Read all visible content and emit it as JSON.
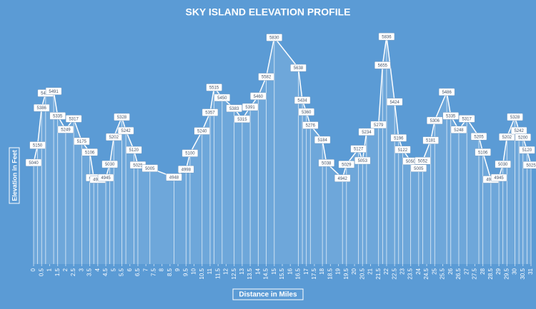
{
  "chart_data": {
    "type": "line",
    "title": "SKY ISLAND ELEVATION PROFILE",
    "xlabel": "Distance in Miles",
    "ylabel": "Elevation in Feet",
    "color": "#ffffff",
    "x": [
      0,
      0.25,
      0.5,
      0.75,
      1.25,
      1.5,
      2,
      2.5,
      3,
      3.5,
      3.75,
      4,
      4.5,
      4.75,
      5,
      5.5,
      5.75,
      6.25,
      6.5,
      7.25,
      8.75,
      9.5,
      9.75,
      10.5,
      11,
      11.25,
      11.75,
      12.5,
      13,
      13.5,
      14,
      14.5,
      15,
      16.5,
      16.75,
      17,
      17.25,
      18,
      18.25,
      19.25,
      19.5,
      20.25,
      20.5,
      20.75,
      21.5,
      21.75,
      22,
      22.5,
      22.75,
      23,
      23.5,
      24,
      24.25,
      24.75,
      25,
      25.75,
      26,
      26.5,
      27,
      27.75,
      28,
      28.5,
      29,
      29.25,
      29.5,
      30,
      30.25,
      30.5,
      30.75,
      31
    ],
    "values": [
      5040,
      5150,
      5386,
      5479,
      5491,
      5335,
      5249,
      5317,
      5175,
      5106,
      4945,
      4934,
      4945,
      5030,
      5202,
      5328,
      5242,
      5120,
      5025,
      5005,
      4948,
      4998,
      5100,
      5240,
      5357,
      5515,
      5450,
      5383,
      5315,
      5391,
      5460,
      5582,
      5830,
      5638,
      5434,
      5360,
      5276,
      5184,
      5038,
      4942,
      5029,
      5127,
      5053,
      5234,
      5279,
      5655,
      5836,
      5424,
      5196,
      5122,
      5050,
      5005,
      5052,
      5181,
      5306,
      5486,
      5335,
      5248,
      5317,
      5205,
      5106,
      4934,
      4945,
      5030,
      5202,
      5328,
      5242,
      5200,
      5120,
      5025
    ],
    "xlim": [
      0,
      31
    ],
    "xticks": [
      0,
      0.5,
      1,
      1.5,
      2,
      2.5,
      3,
      3.5,
      4,
      4.5,
      5,
      5.5,
      6,
      6.5,
      7,
      7.5,
      8,
      8.5,
      9,
      9.5,
      10,
      10.5,
      11,
      11.5,
      12,
      12.5,
      13,
      13.5,
      14,
      14.5,
      15,
      15.5,
      16,
      16.5,
      17,
      17.5,
      18,
      18.5,
      19,
      19.5,
      20,
      20.5,
      21,
      21.5,
      22,
      22.5,
      23,
      23.5,
      24,
      24.5,
      25,
      25.5,
      26,
      26.5,
      27,
      27.5,
      28,
      28.5,
      29,
      29.5,
      30,
      30.5,
      31
    ],
    "ylim": [
      4400,
      5900
    ]
  }
}
